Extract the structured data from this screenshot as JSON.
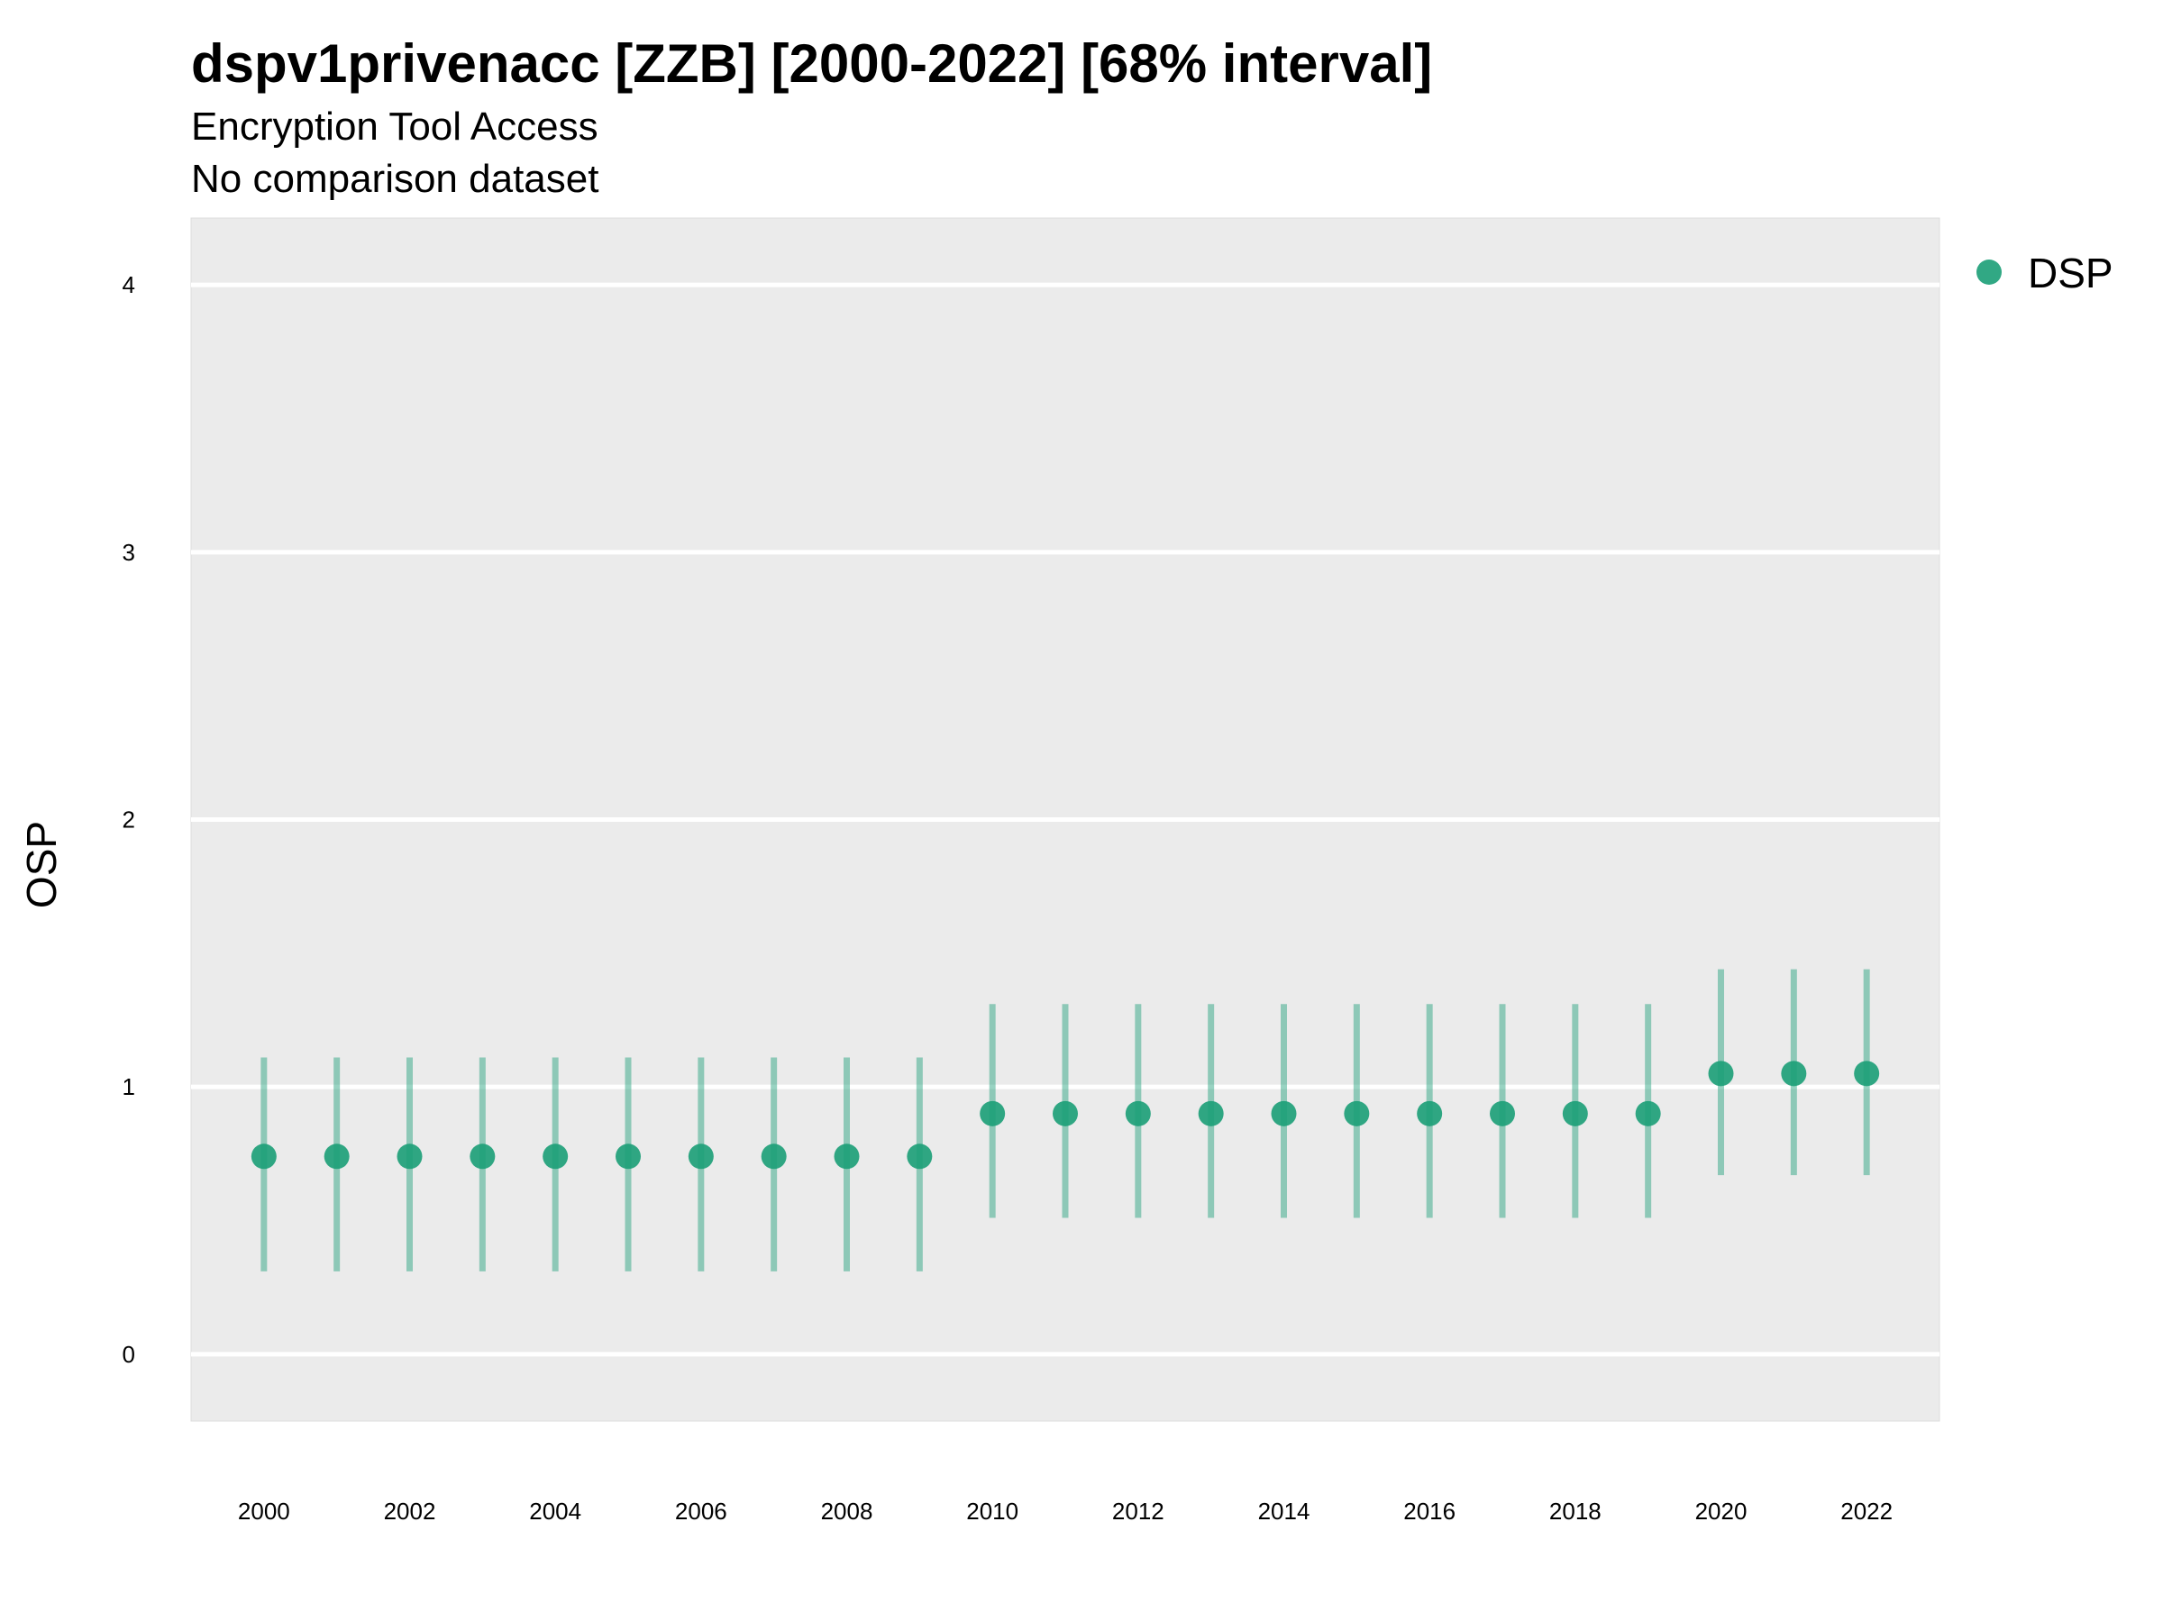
{
  "chart_data": {
    "type": "scatter",
    "title": "dspv1privenacc [ZZB] [2000-2022] [68% interval]",
    "subtitle": "Encryption Tool Access",
    "subtitle2": "No comparison dataset",
    "ylabel": "OSP",
    "xlabel": "",
    "xlim": [
      1999,
      2023
    ],
    "ylim": [
      -0.25,
      4.25
    ],
    "grid": true,
    "legend_position": "right-top",
    "x_ticks": [
      2000,
      2002,
      2004,
      2006,
      2008,
      2010,
      2012,
      2014,
      2016,
      2018,
      2020,
      2022
    ],
    "y_ticks": [
      0,
      1,
      2,
      3,
      4
    ],
    "colors": {
      "point": "#1b9e77",
      "panel": "#ebebeb",
      "grid": "#ffffff"
    },
    "series": [
      {
        "name": "DSP",
        "x": [
          2000,
          2001,
          2002,
          2003,
          2004,
          2005,
          2006,
          2007,
          2008,
          2009,
          2010,
          2011,
          2012,
          2013,
          2014,
          2015,
          2016,
          2017,
          2018,
          2019,
          2020,
          2021,
          2022
        ],
        "y": [
          0.74,
          0.74,
          0.74,
          0.74,
          0.74,
          0.74,
          0.74,
          0.74,
          0.74,
          0.74,
          0.9,
          0.9,
          0.9,
          0.9,
          0.9,
          0.9,
          0.9,
          0.9,
          0.9,
          0.9,
          1.05,
          1.05,
          1.05
        ],
        "lower": [
          0.31,
          0.31,
          0.31,
          0.31,
          0.31,
          0.31,
          0.31,
          0.31,
          0.31,
          0.31,
          0.51,
          0.51,
          0.51,
          0.51,
          0.51,
          0.51,
          0.51,
          0.51,
          0.51,
          0.51,
          0.67,
          0.67,
          0.67
        ],
        "upper": [
          1.11,
          1.11,
          1.11,
          1.11,
          1.11,
          1.11,
          1.11,
          1.11,
          1.11,
          1.11,
          1.31,
          1.31,
          1.31,
          1.31,
          1.31,
          1.31,
          1.31,
          1.31,
          1.31,
          1.31,
          1.44,
          1.44,
          1.44
        ]
      }
    ]
  }
}
